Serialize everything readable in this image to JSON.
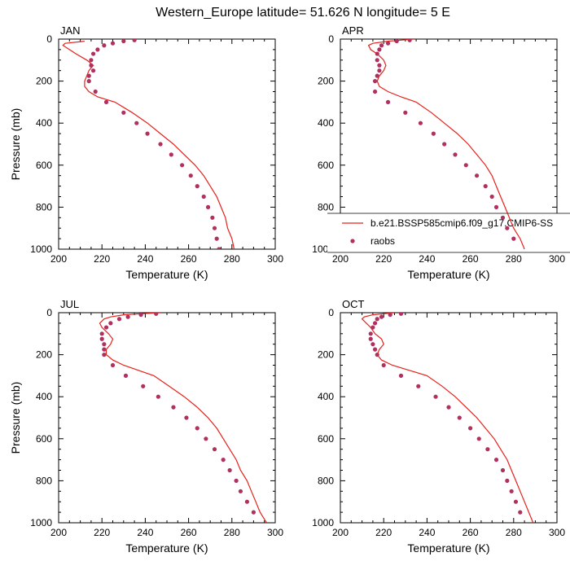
{
  "figure": {
    "title": "Western_Europe  latitude= 51.626 N longitude= 5 E"
  },
  "legend": {
    "model_label": "b.e21.BSSP585cmip6.f09_g17.CMIP6-SS",
    "obs_label": "raobs",
    "model_color": "#e8201a",
    "obs_color": "#b03060"
  },
  "chart_data": [
    {
      "type": "line",
      "panel": "JAN",
      "xlabel": "Temperature (K)",
      "ylabel": "Pressure (mb)",
      "xlim": [
        200,
        300
      ],
      "ylim": [
        1000,
        0
      ],
      "xticks": [
        200,
        220,
        240,
        260,
        280,
        300
      ],
      "yticks": [
        0,
        200,
        400,
        600,
        800,
        1000
      ],
      "series": [
        {
          "kind": "model",
          "points": [
            [
              212,
              10
            ],
            [
              203,
              20
            ],
            [
              202,
              30
            ],
            [
              205,
              50
            ],
            [
              208,
              70
            ],
            [
              213,
              100
            ],
            [
              216,
              125
            ],
            [
              214,
              150
            ],
            [
              213,
              175
            ],
            [
              212,
              200
            ],
            [
              212,
              225
            ],
            [
              214,
              250
            ],
            [
              218,
              275
            ],
            [
              226,
              300
            ],
            [
              234,
              350
            ],
            [
              241,
              400
            ],
            [
              247,
              450
            ],
            [
              253,
              500
            ],
            [
              258,
              550
            ],
            [
              263,
              600
            ],
            [
              267,
              650
            ],
            [
              270,
              700
            ],
            [
              273,
              750
            ],
            [
              275,
              800
            ],
            [
              277,
              850
            ],
            [
              278,
              900
            ],
            [
              280,
              950
            ],
            [
              281,
              1000
            ]
          ]
        },
        {
          "kind": "obs",
          "points": [
            [
              235,
              5
            ],
            [
              230,
              10
            ],
            [
              225,
              20
            ],
            [
              221,
              30
            ],
            [
              218,
              50
            ],
            [
              216,
              70
            ],
            [
              215,
              100
            ],
            [
              215,
              125
            ],
            [
              216,
              150
            ],
            [
              214,
              175
            ],
            [
              214,
              200
            ],
            [
              217,
              250
            ],
            [
              222,
              300
            ],
            [
              230,
              350
            ],
            [
              236,
              400
            ],
            [
              241,
              450
            ],
            [
              247,
              500
            ],
            [
              252,
              550
            ],
            [
              257,
              600
            ],
            [
              261,
              650
            ],
            [
              264,
              700
            ],
            [
              267,
              750
            ],
            [
              269,
              800
            ],
            [
              271,
              850
            ],
            [
              272,
              900
            ],
            [
              273,
              950
            ],
            [
              274,
              1000
            ]
          ]
        }
      ]
    },
    {
      "type": "line",
      "panel": "APR",
      "xlabel": "Temperature (K)",
      "ylabel": "",
      "xlim": [
        200,
        300
      ],
      "ylim": [
        1000,
        0
      ],
      "xticks": [
        200,
        220,
        240,
        260,
        280,
        300
      ],
      "yticks": [
        0,
        200,
        400,
        600,
        800,
        1000
      ],
      "series": [
        {
          "kind": "model",
          "points": [
            [
              234,
              0
            ],
            [
              228,
              5
            ],
            [
              222,
              10
            ],
            [
              215,
              20
            ],
            [
              213,
              30
            ],
            [
              214,
              50
            ],
            [
              217,
              70
            ],
            [
              220,
              100
            ],
            [
              221,
              125
            ],
            [
              220,
              150
            ],
            [
              218,
              175
            ],
            [
              217,
              200
            ],
            [
              218,
              225
            ],
            [
              222,
              250
            ],
            [
              228,
              275
            ],
            [
              235,
              300
            ],
            [
              242,
              350
            ],
            [
              248,
              400
            ],
            [
              254,
              450
            ],
            [
              259,
              500
            ],
            [
              263,
              550
            ],
            [
              267,
              600
            ],
            [
              270,
              650
            ],
            [
              272,
              700
            ],
            [
              274,
              750
            ],
            [
              276,
              800
            ],
            [
              278,
              850
            ],
            [
              280,
              900
            ],
            [
              283,
              950
            ],
            [
              285,
              1000
            ]
          ]
        },
        {
          "kind": "obs",
          "points": [
            [
              232,
              5
            ],
            [
              226,
              10
            ],
            [
              222,
              20
            ],
            [
              219,
              30
            ],
            [
              218,
              50
            ],
            [
              217,
              70
            ],
            [
              217,
              100
            ],
            [
              218,
              125
            ],
            [
              218,
              150
            ],
            [
              217,
              175
            ],
            [
              216,
              200
            ],
            [
              216,
              250
            ],
            [
              222,
              300
            ],
            [
              230,
              350
            ],
            [
              237,
              400
            ],
            [
              243,
              450
            ],
            [
              248,
              500
            ],
            [
              253,
              550
            ],
            [
              258,
              600
            ],
            [
              263,
              650
            ],
            [
              267,
              700
            ],
            [
              270,
              750
            ],
            [
              272,
              800
            ],
            [
              275,
              850
            ],
            [
              277,
              900
            ],
            [
              280,
              950
            ]
          ]
        }
      ]
    },
    {
      "type": "line",
      "panel": "JUL",
      "xlabel": "Temperature (K)",
      "ylabel": "Pressure (mb)",
      "xlim": [
        200,
        300
      ],
      "ylim": [
        1000,
        0
      ],
      "xticks": [
        200,
        220,
        240,
        260,
        280,
        300
      ],
      "yticks": [
        0,
        200,
        400,
        600,
        800,
        1000
      ],
      "series": [
        {
          "kind": "model",
          "points": [
            [
              247,
              0
            ],
            [
              238,
              5
            ],
            [
              230,
              10
            ],
            [
              224,
              20
            ],
            [
              221,
              30
            ],
            [
              219,
              50
            ],
            [
              220,
              70
            ],
            [
              223,
              100
            ],
            [
              225,
              125
            ],
            [
              224,
              150
            ],
            [
              222,
              175
            ],
            [
              222,
              200
            ],
            [
              225,
              225
            ],
            [
              230,
              250
            ],
            [
              237,
              275
            ],
            [
              244,
              300
            ],
            [
              251,
              350
            ],
            [
              258,
              400
            ],
            [
              264,
              450
            ],
            [
              269,
              500
            ],
            [
              273,
              550
            ],
            [
              276,
              600
            ],
            [
              279,
              650
            ],
            [
              282,
              700
            ],
            [
              284,
              750
            ],
            [
              287,
              800
            ],
            [
              289,
              850
            ],
            [
              291,
              900
            ],
            [
              293,
              950
            ],
            [
              296,
              1000
            ]
          ]
        },
        {
          "kind": "obs",
          "points": [
            [
              245,
              5
            ],
            [
              238,
              10
            ],
            [
              232,
              20
            ],
            [
              228,
              30
            ],
            [
              224,
              50
            ],
            [
              222,
              70
            ],
            [
              220,
              100
            ],
            [
              220,
              125
            ],
            [
              221,
              150
            ],
            [
              221,
              175
            ],
            [
              221,
              200
            ],
            [
              225,
              250
            ],
            [
              231,
              300
            ],
            [
              239,
              350
            ],
            [
              246,
              400
            ],
            [
              253,
              450
            ],
            [
              259,
              500
            ],
            [
              264,
              550
            ],
            [
              268,
              600
            ],
            [
              272,
              650
            ],
            [
              276,
              700
            ],
            [
              279,
              750
            ],
            [
              282,
              800
            ],
            [
              284,
              850
            ],
            [
              287,
              900
            ],
            [
              290,
              950
            ]
          ]
        }
      ]
    },
    {
      "type": "line",
      "panel": "OCT",
      "xlabel": "Temperature (K)",
      "ylabel": "",
      "xlim": [
        200,
        300
      ],
      "ylim": [
        1000,
        0
      ],
      "xticks": [
        200,
        220,
        240,
        260,
        280,
        300
      ],
      "yticks": [
        0,
        200,
        400,
        600,
        800,
        1000
      ],
      "series": [
        {
          "kind": "model",
          "points": [
            [
              225,
              0
            ],
            [
              220,
              5
            ],
            [
              215,
              10
            ],
            [
              211,
              20
            ],
            [
              210,
              30
            ],
            [
              212,
              50
            ],
            [
              214,
              70
            ],
            [
              216,
              100
            ],
            [
              219,
              125
            ],
            [
              220,
              150
            ],
            [
              218,
              175
            ],
            [
              217,
              200
            ],
            [
              219,
              225
            ],
            [
              224,
              250
            ],
            [
              232,
              275
            ],
            [
              240,
              300
            ],
            [
              247,
              350
            ],
            [
              253,
              400
            ],
            [
              258,
              450
            ],
            [
              263,
              500
            ],
            [
              267,
              550
            ],
            [
              271,
              600
            ],
            [
              274,
              650
            ],
            [
              277,
              700
            ],
            [
              279,
              750
            ],
            [
              281,
              800
            ],
            [
              283,
              850
            ],
            [
              285,
              900
            ],
            [
              287,
              950
            ],
            [
              289,
              1000
            ]
          ]
        },
        {
          "kind": "obs",
          "points": [
            [
              228,
              5
            ],
            [
              223,
              10
            ],
            [
              219,
              20
            ],
            [
              217,
              30
            ],
            [
              216,
              50
            ],
            [
              215,
              70
            ],
            [
              214,
              100
            ],
            [
              214,
              125
            ],
            [
              215,
              150
            ],
            [
              216,
              175
            ],
            [
              217,
              200
            ],
            [
              220,
              250
            ],
            [
              228,
              300
            ],
            [
              236,
              350
            ],
            [
              244,
              400
            ],
            [
              250,
              450
            ],
            [
              255,
              500
            ],
            [
              260,
              550
            ],
            [
              264,
              600
            ],
            [
              268,
              650
            ],
            [
              272,
              700
            ],
            [
              275,
              750
            ],
            [
              277,
              800
            ],
            [
              279,
              850
            ],
            [
              281,
              900
            ],
            [
              283,
              950
            ]
          ]
        }
      ]
    }
  ]
}
